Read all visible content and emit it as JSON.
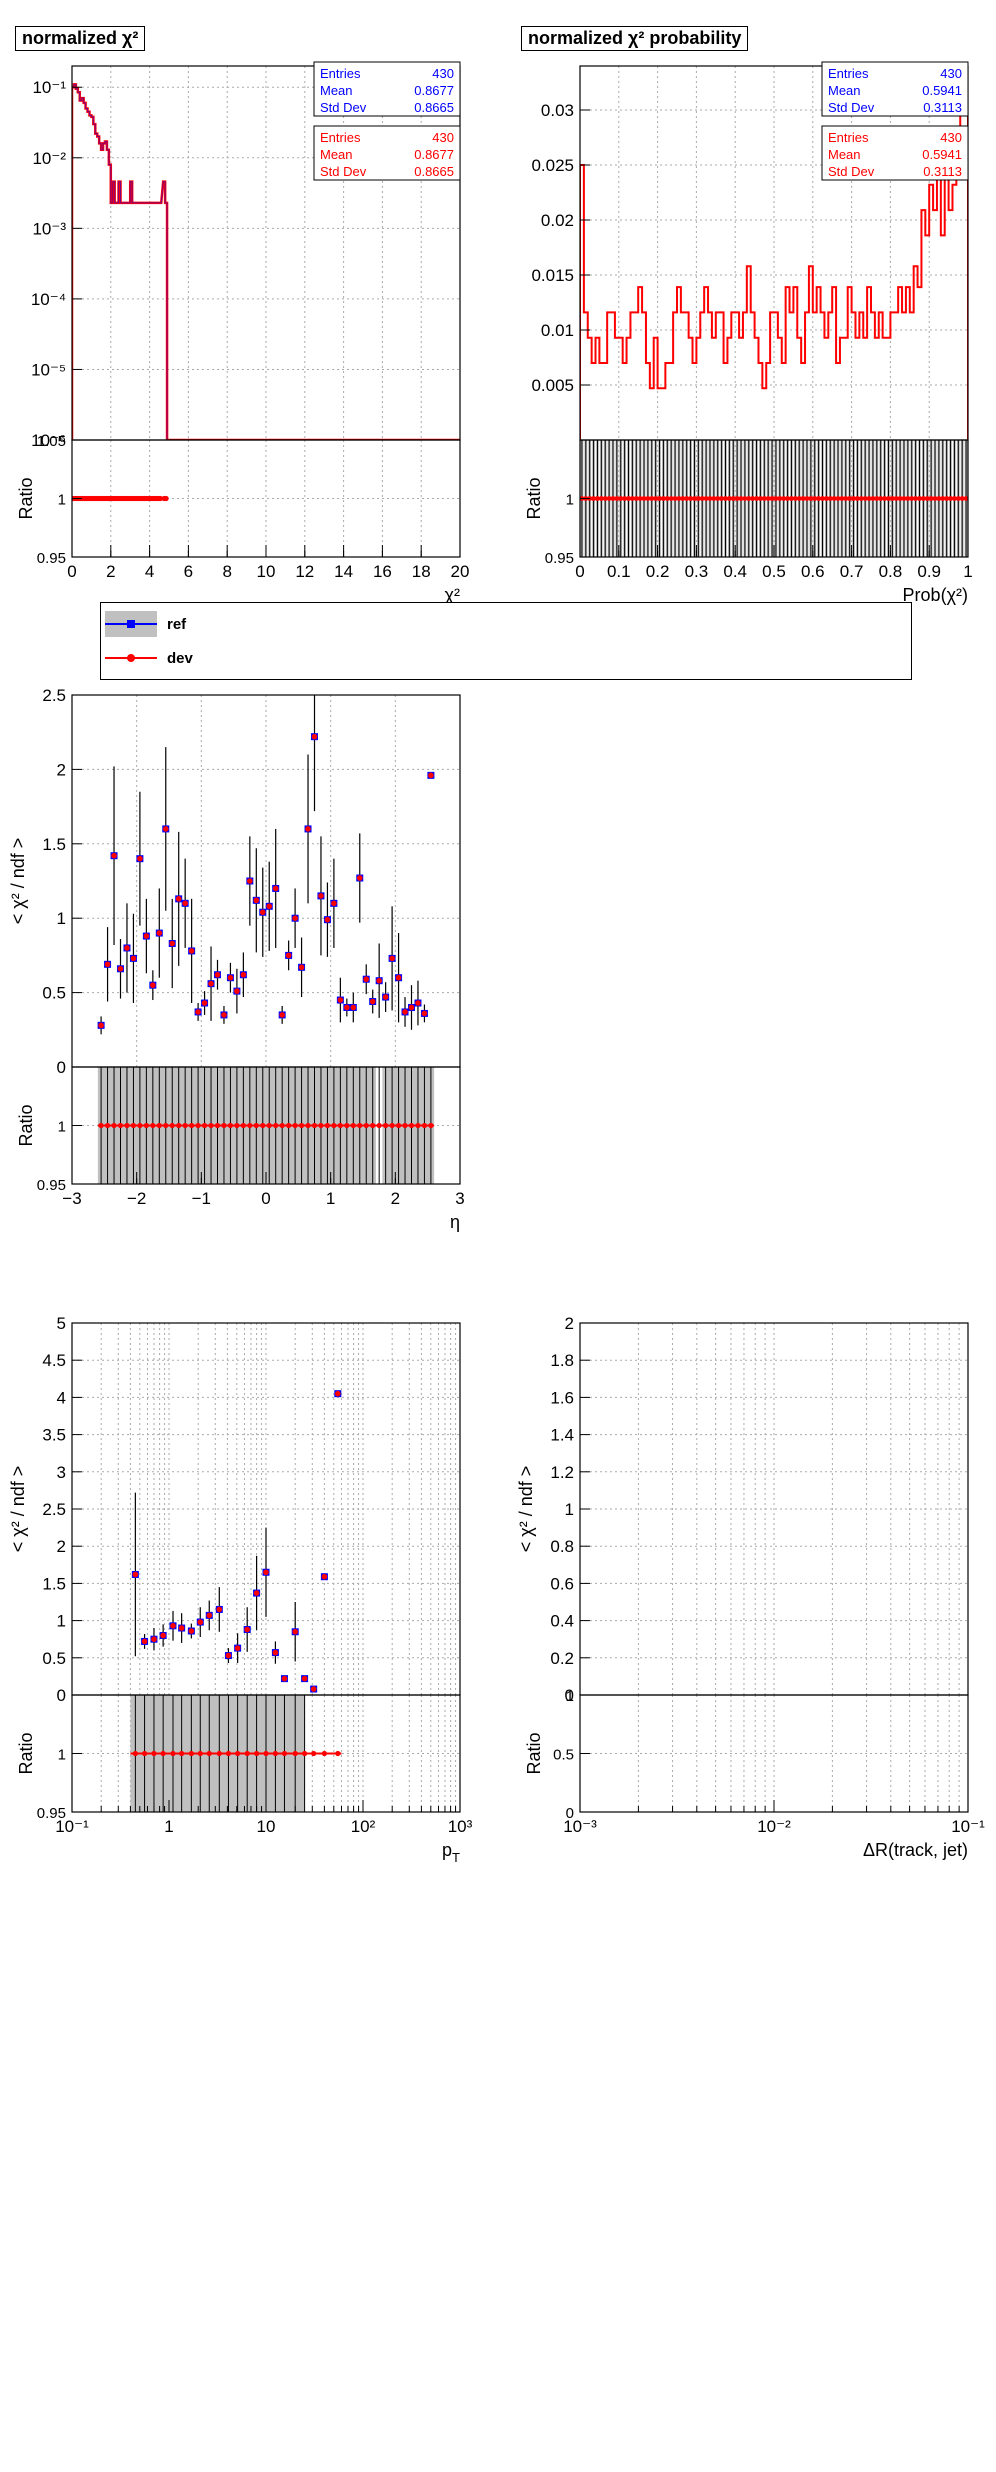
{
  "colors": {
    "ref": "#0000ff",
    "dev": "#ff0000",
    "band": "#c0c0c0",
    "grid": "#aaaaaa",
    "axis": "#000000"
  },
  "panels": [
    {
      "id": "p1",
      "type": "histogram",
      "log_y": true,
      "title": "normalized χ²",
      "xlabel": "χ²",
      "ylabel": "",
      "ratio_label": "Ratio",
      "xlim": [
        0,
        20
      ],
      "ylim": [
        1e-06,
        0.2
      ],
      "ratio_ylim": [
        0.95,
        1.05
      ],
      "x_ticks": [
        "0",
        "2",
        "4",
        "6",
        "8",
        "10",
        "12",
        "14",
        "16",
        "18",
        "20"
      ],
      "y_ticks": [
        "10⁻¹",
        "10⁻²",
        "10⁻³",
        "10⁻⁴",
        "10⁻⁵",
        "10⁻⁶"
      ],
      "ratio_ticks": [
        "0.95",
        "1",
        "1.05"
      ],
      "stats": [
        {
          "series": "ref",
          "rows": [
            [
              "Entries",
              "430"
            ],
            [
              "Mean",
              "0.8677"
            ],
            [
              "Std Dev",
              "0.8665"
            ]
          ]
        },
        {
          "series": "dev",
          "rows": [
            [
              "Entries",
              "430"
            ],
            [
              "Mean",
              "0.8677"
            ],
            [
              "Std Dev",
              "0.8665"
            ]
          ]
        }
      ]
    },
    {
      "id": "p2",
      "type": "histogram",
      "log_y": false,
      "title": "normalized χ² probability",
      "xlabel": "Prob(χ²)",
      "ylabel": "",
      "ratio_label": "Ratio",
      "xlim": [
        0,
        1
      ],
      "ylim": [
        0,
        0.034
      ],
      "ratio_ylim": [
        0.95,
        1.05
      ],
      "x_ticks": [
        "0",
        "0.1",
        "0.2",
        "0.3",
        "0.4",
        "0.5",
        "0.6",
        "0.7",
        "0.8",
        "0.9",
        "1"
      ],
      "y_ticks": [
        "0.005",
        "0.01",
        "0.015",
        "0.02",
        "0.025",
        "0.03"
      ],
      "ratio_ticks": [
        "0.95",
        "1"
      ],
      "stats": [
        {
          "series": "ref",
          "rows": [
            [
              "Entries",
              "430"
            ],
            [
              "Mean",
              "0.5941"
            ],
            [
              "Std Dev",
              "0.3113"
            ]
          ]
        },
        {
          "series": "dev",
          "rows": [
            [
              "Entries",
              "430"
            ],
            [
              "Mean",
              "0.5941"
            ],
            [
              "Std Dev",
              "0.3113"
            ]
          ]
        }
      ]
    },
    {
      "id": "p3",
      "type": "profile",
      "log_x": false,
      "title": "",
      "xlabel": "η",
      "ylabel": "< χ² / ndf >",
      "ratio_label": "Ratio",
      "xlim": [
        -3,
        3
      ],
      "ylim": [
        0,
        2.5
      ],
      "ratio_ylim": [
        0.95,
        1.05
      ],
      "x_ticks": [
        "−3",
        "−2",
        "−1",
        "0",
        "1",
        "2",
        "3"
      ],
      "y_ticks": [
        "0",
        "0.5",
        "1",
        "1.5",
        "2",
        "2.5"
      ],
      "ratio_ticks": [
        "0.95",
        "1"
      ]
    },
    {
      "id": "p4",
      "type": "profile",
      "log_x": true,
      "title": "",
      "xlabel": "p_T",
      "ylabel": "< χ² / ndf >",
      "ratio_label": "Ratio",
      "xlim": [
        0.1,
        1000
      ],
      "ylim": [
        0,
        5
      ],
      "ratio_ylim": [
        0.95,
        1.05
      ],
      "x_ticks": [
        "10⁻¹",
        "1",
        "10",
        "10²",
        "10³"
      ],
      "y_ticks": [
        "0",
        "0.5",
        "1",
        "1.5",
        "2",
        "2.5",
        "3",
        "3.5",
        "4",
        "4.5",
        "5"
      ],
      "ratio_ticks": [
        "0.95",
        "1"
      ]
    },
    {
      "id": "p5",
      "type": "profile",
      "log_x": true,
      "title": "",
      "xlabel": "ΔR(track, jet)",
      "ylabel": "< χ² / ndf >",
      "ratio_label": "Ratio",
      "xlim": [
        0.001,
        0.1
      ],
      "ylim": [
        0,
        2
      ],
      "ratio_ylim": [
        0,
        1
      ],
      "x_ticks": [
        "10⁻³",
        "10⁻²",
        "10⁻¹"
      ],
      "y_ticks": [
        "0",
        "0.2",
        "0.4",
        "0.6",
        "0.8",
        "1",
        "1.2",
        "1.4",
        "1.6",
        "1.8",
        "2"
      ],
      "ratio_ticks": [
        "0",
        "0.5",
        "1"
      ]
    }
  ],
  "legend": [
    {
      "label": "ref"
    },
    {
      "label": "dev"
    }
  ],
  "chart_data": [
    {
      "type": "histogram",
      "panel": "p1",
      "x_range": [
        0,
        20
      ],
      "bin_width": 0.1,
      "log_y": true,
      "series": [
        {
          "name": "ref"
        },
        {
          "name": "dev"
        }
      ],
      "bins": [
        [
          0.0,
          0.1
        ],
        [
          0.1,
          0.11
        ],
        [
          0.2,
          0.095
        ],
        [
          0.3,
          0.085
        ],
        [
          0.4,
          0.065
        ],
        [
          0.5,
          0.07
        ],
        [
          0.6,
          0.06
        ],
        [
          0.7,
          0.05
        ],
        [
          0.8,
          0.045
        ],
        [
          0.9,
          0.04
        ],
        [
          1.0,
          0.038
        ],
        [
          1.1,
          0.03
        ],
        [
          1.2,
          0.022
        ],
        [
          1.3,
          0.02
        ],
        [
          1.4,
          0.016
        ],
        [
          1.5,
          0.013
        ],
        [
          1.6,
          0.016
        ],
        [
          1.7,
          0.017
        ],
        [
          1.8,
          0.013
        ],
        [
          1.9,
          0.008
        ],
        [
          2.0,
          0.0023
        ],
        [
          2.1,
          0.0046
        ],
        [
          2.2,
          0.0023
        ],
        [
          2.3,
          0.0023
        ],
        [
          2.4,
          0.0046
        ],
        [
          2.5,
          0.0023
        ],
        [
          2.6,
          0.0023
        ],
        [
          2.7,
          0.0023
        ],
        [
          2.8,
          0.0023
        ],
        [
          2.9,
          0.0023
        ],
        [
          3.0,
          0.0046
        ],
        [
          3.1,
          0.0023
        ],
        [
          3.2,
          0.0023
        ],
        [
          3.3,
          0.0023
        ],
        [
          3.4,
          0.0023
        ],
        [
          3.5,
          0.0023
        ],
        [
          3.6,
          0.0023
        ],
        [
          3.7,
          0.0023
        ],
        [
          3.8,
          0.0023
        ],
        [
          3.9,
          0.0023
        ],
        [
          4.0,
          0.0023
        ],
        [
          4.1,
          0.0023
        ],
        [
          4.2,
          0.0023
        ],
        [
          4.3,
          0.0023
        ],
        [
          4.4,
          0.0023
        ],
        [
          4.5,
          0.0023
        ],
        [
          4.7,
          0.0046
        ],
        [
          4.8,
          0.0023
        ]
      ],
      "ratio": {
        "y": 1,
        "x_range": [
          0,
          4.9
        ]
      }
    },
    {
      "type": "histogram",
      "panel": "p2",
      "x_range": [
        0,
        1
      ],
      "bin_width": 0.01,
      "log_y": false,
      "series": [
        {
          "name": "ref"
        },
        {
          "name": "dev"
        }
      ],
      "values": [
        0.025,
        0.0116,
        0.0093,
        0.007,
        0.0093,
        0.007,
        0.007,
        0.0116,
        0.0116,
        0.0093,
        0.0093,
        0.007,
        0.0093,
        0.0116,
        0.0116,
        0.0139,
        0.0116,
        0.007,
        0.0047,
        0.0093,
        0.0047,
        0.0047,
        0.007,
        0.007,
        0.0116,
        0.0139,
        0.0116,
        0.0116,
        0.0093,
        0.007,
        0.0093,
        0.0116,
        0.0139,
        0.0116,
        0.0093,
        0.0116,
        0.0116,
        0.007,
        0.0093,
        0.0116,
        0.0116,
        0.0093,
        0.0116,
        0.0158,
        0.0116,
        0.0093,
        0.007,
        0.0047,
        0.007,
        0.0116,
        0.0116,
        0.0093,
        0.007,
        0.0139,
        0.0116,
        0.0139,
        0.0093,
        0.007,
        0.0116,
        0.0158,
        0.0116,
        0.0139,
        0.0116,
        0.0093,
        0.0116,
        0.0139,
        0.007,
        0.0093,
        0.0093,
        0.0139,
        0.0116,
        0.0093,
        0.0116,
        0.0093,
        0.0139,
        0.0116,
        0.0093,
        0.0116,
        0.0093,
        0.0093,
        0.0116,
        0.0116,
        0.0139,
        0.0116,
        0.0139,
        0.0116,
        0.0158,
        0.0139,
        0.0209,
        0.0186,
        0.0232,
        0.0209,
        0.0279,
        0.0186,
        0.0255,
        0.0209,
        0.0232,
        0.0279,
        0.0302,
        0.0325
      ],
      "ratio": {
        "y": 1
      }
    },
    {
      "type": "profile",
      "panel": "p3",
      "series": [
        {
          "name": "ref"
        },
        {
          "name": "dev"
        }
      ],
      "points": [
        [
          -2.55,
          0.28,
          0.06
        ],
        [
          -2.45,
          0.69,
          0.25
        ],
        [
          -2.35,
          1.42,
          0.6
        ],
        [
          -2.25,
          0.66,
          0.2
        ],
        [
          -2.15,
          0.8,
          0.3
        ],
        [
          -2.05,
          0.73,
          0.3
        ],
        [
          -1.95,
          1.4,
          0.45
        ],
        [
          -1.85,
          0.88,
          0.25
        ],
        [
          -1.75,
          0.55,
          0.1
        ],
        [
          -1.65,
          0.9,
          0.3
        ],
        [
          -1.55,
          1.6,
          0.55
        ],
        [
          -1.45,
          0.83,
          0.3
        ],
        [
          -1.35,
          1.13,
          0.45
        ],
        [
          -1.25,
          1.1,
          0.3
        ],
        [
          -1.15,
          0.78,
          0.35
        ],
        [
          -1.05,
          0.37,
          0.06
        ],
        [
          -0.95,
          0.43,
          0.08
        ],
        [
          -0.85,
          0.56,
          0.25
        ],
        [
          -0.75,
          0.62,
          0.1
        ],
        [
          -0.65,
          0.35,
          0.06
        ],
        [
          -0.55,
          0.6,
          0.1
        ],
        [
          -0.45,
          0.51,
          0.15
        ],
        [
          -0.35,
          0.62,
          0.15
        ],
        [
          -0.25,
          1.25,
          0.3
        ],
        [
          -0.15,
          1.12,
          0.35
        ],
        [
          -0.05,
          1.04,
          0.3
        ],
        [
          0.05,
          1.08,
          0.3
        ],
        [
          0.15,
          1.2,
          0.4
        ],
        [
          0.25,
          0.35,
          0.06
        ],
        [
          0.35,
          0.75,
          0.1
        ],
        [
          0.45,
          1.0,
          0.2
        ],
        [
          0.55,
          0.67,
          0.2
        ],
        [
          0.65,
          1.6,
          0.5
        ],
        [
          0.75,
          2.22,
          0.5
        ],
        [
          0.85,
          1.15,
          0.4
        ],
        [
          0.95,
          0.99,
          0.25
        ],
        [
          1.05,
          1.1,
          0.3
        ],
        [
          1.15,
          0.45,
          0.15
        ],
        [
          1.25,
          0.4,
          0.06
        ],
        [
          1.35,
          0.4,
          0.1
        ],
        [
          1.45,
          1.27,
          0.3
        ],
        [
          1.55,
          0.59,
          0.1
        ],
        [
          1.65,
          0.44,
          0.08
        ],
        [
          1.75,
          0.58,
          0.25
        ],
        [
          1.85,
          0.47,
          0.1
        ],
        [
          1.95,
          0.73,
          0.35
        ],
        [
          2.05,
          0.6,
          0.3
        ],
        [
          2.15,
          0.37,
          0.1
        ],
        [
          2.25,
          0.4,
          0.15
        ],
        [
          2.35,
          0.43,
          0.15
        ],
        [
          2.45,
          0.36,
          0.06
        ],
        [
          2.55,
          1.96,
          0.02
        ]
      ],
      "ratio": {
        "y": 1,
        "x_range": [
          -2.6,
          2.6
        ],
        "band_gaps": [
          1.7,
          1.8
        ]
      }
    },
    {
      "type": "profile",
      "panel": "p4",
      "log_x": true,
      "series": [
        {
          "name": "ref"
        },
        {
          "name": "dev"
        }
      ],
      "points": [
        [
          0.45,
          1.62,
          1.1
        ],
        [
          0.56,
          0.72,
          0.1
        ],
        [
          0.7,
          0.75,
          0.15
        ],
        [
          0.87,
          0.8,
          0.15
        ],
        [
          1.1,
          0.93,
          0.2
        ],
        [
          1.35,
          0.9,
          0.2
        ],
        [
          1.7,
          0.86,
          0.1
        ],
        [
          2.1,
          0.98,
          0.2
        ],
        [
          2.6,
          1.07,
          0.2
        ],
        [
          3.3,
          1.15,
          0.3
        ],
        [
          4.1,
          0.53,
          0.1
        ],
        [
          5.1,
          0.63,
          0.2
        ],
        [
          6.4,
          0.88,
          0.3
        ],
        [
          8.0,
          1.37,
          0.5
        ],
        [
          10,
          1.65,
          0.6
        ],
        [
          12.5,
          0.57,
          0.15
        ],
        [
          15.5,
          0.22,
          0.02
        ],
        [
          20,
          0.85,
          0.4
        ],
        [
          25,
          0.22,
          0.02
        ],
        [
          31,
          0.08,
          0.02
        ],
        [
          40,
          1.59,
          0.02
        ],
        [
          55,
          4.05,
          0.02
        ]
      ],
      "ratio": {
        "y": 1,
        "x_range": [
          0.4,
          60
        ],
        "band_range": [
          0.4,
          25
        ]
      }
    },
    {
      "type": "profile",
      "panel": "p5",
      "log_x": true,
      "series": [
        {
          "name": "ref"
        },
        {
          "name": "dev"
        }
      ],
      "points": []
    }
  ]
}
